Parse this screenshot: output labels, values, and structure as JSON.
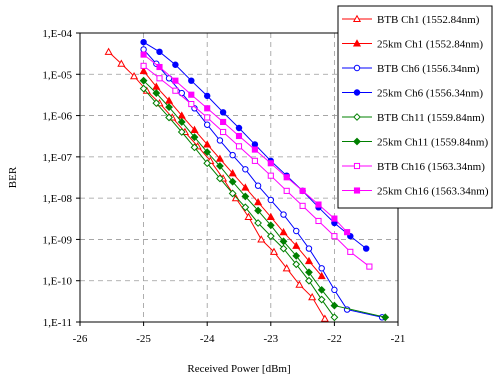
{
  "chart_data": {
    "type": "line",
    "xlabel": "Received Power [dBm]",
    "ylabel": "BER",
    "xlim": [
      -26,
      -21
    ],
    "ylim_log10": [
      -11,
      -4
    ],
    "y_scale": "log",
    "grid": true,
    "legend_position": "top-right-outside",
    "x_ticks": [
      -26,
      -25,
      -24,
      -23,
      -22,
      -21
    ],
    "x_tick_labels": [
      "-26",
      "-25",
      "-24",
      "-23",
      "-22",
      "-21"
    ],
    "y_ticks_log10": [
      -4,
      -5,
      -6,
      -7,
      -8,
      -9,
      -10,
      -11
    ],
    "y_tick_labels": [
      "1,E-04",
      "1,E-05",
      "1,E-06",
      "1,E-07",
      "1,E-08",
      "1,E-09",
      "1,E-10",
      "1,E-11"
    ],
    "series": [
      {
        "name": "BTB Ch1 (1552.84nm)",
        "color": "#ff0000",
        "marker": "triangle",
        "filled": false,
        "points": [
          [
            -25.55,
            3.5e-05
          ],
          [
            -25.35,
            1.8e-05
          ],
          [
            -25.15,
            9e-06
          ],
          [
            -24.95,
            4e-06
          ],
          [
            -24.75,
            2e-06
          ],
          [
            -24.55,
            9e-07
          ],
          [
            -24.35,
            4e-07
          ],
          [
            -24.15,
            1.8e-07
          ],
          [
            -23.95,
            8e-08
          ],
          [
            -23.75,
            3e-08
          ],
          [
            -23.55,
            1e-08
          ],
          [
            -23.35,
            3.5e-09
          ],
          [
            -23.15,
            1e-09
          ],
          [
            -22.95,
            5e-10
          ],
          [
            -22.75,
            2e-10
          ],
          [
            -22.55,
            8e-11
          ],
          [
            -22.35,
            4e-11
          ],
          [
            -22.15,
            1.2e-11
          ]
        ]
      },
      {
        "name": "25km Ch1 (1552.84nm)",
        "color": "#ff0000",
        "marker": "triangle",
        "filled": true,
        "points": [
          [
            -25.0,
            1.2e-05
          ],
          [
            -24.8,
            5e-06
          ],
          [
            -24.6,
            2.3e-06
          ],
          [
            -24.4,
            1e-06
          ],
          [
            -24.2,
            4.5e-07
          ],
          [
            -24.0,
            2e-07
          ],
          [
            -23.8,
            9e-08
          ],
          [
            -23.6,
            4e-08
          ],
          [
            -23.4,
            1.8e-08
          ],
          [
            -23.2,
            8e-09
          ],
          [
            -23.0,
            3.5e-09
          ],
          [
            -22.8,
            1.5e-09
          ],
          [
            -22.6,
            7e-10
          ],
          [
            -22.4,
            3e-10
          ],
          [
            -22.2,
            1.3e-10
          ]
        ]
      },
      {
        "name": "BTB Ch6 (1556.34nm)",
        "color": "#0000ff",
        "marker": "circle",
        "filled": false,
        "points": [
          [
            -25.0,
            4e-05
          ],
          [
            -24.8,
            1.8e-05
          ],
          [
            -24.6,
            8e-06
          ],
          [
            -24.4,
            3.5e-06
          ],
          [
            -24.2,
            1.5e-06
          ],
          [
            -24.0,
            6e-07
          ],
          [
            -23.8,
            2.5e-07
          ],
          [
            -23.6,
            1.1e-07
          ],
          [
            -23.4,
            5e-08
          ],
          [
            -23.2,
            2e-08
          ],
          [
            -23.0,
            9e-09
          ],
          [
            -22.8,
            4e-09
          ],
          [
            -22.6,
            1.6e-09
          ],
          [
            -22.4,
            6e-10
          ],
          [
            -22.2,
            2e-10
          ],
          [
            -22.0,
            6e-11
          ],
          [
            -21.8,
            2e-11
          ],
          [
            -21.25,
            1.3e-11
          ]
        ]
      },
      {
        "name": "25km Ch6 (1556.34nm)",
        "color": "#0000ff",
        "marker": "circle",
        "filled": true,
        "points": [
          [
            -25.0,
            6e-05
          ],
          [
            -24.75,
            3.5e-05
          ],
          [
            -24.5,
            1.7e-05
          ],
          [
            -24.25,
            7e-06
          ],
          [
            -24.0,
            3e-06
          ],
          [
            -23.75,
            1.2e-06
          ],
          [
            -23.5,
            5e-07
          ],
          [
            -23.25,
            2e-07
          ],
          [
            -23.0,
            8e-08
          ],
          [
            -22.75,
            3.5e-08
          ],
          [
            -22.5,
            1.5e-08
          ],
          [
            -22.25,
            6e-09
          ],
          [
            -22.0,
            2.5e-09
          ],
          [
            -21.75,
            1.2e-09
          ],
          [
            -21.5,
            6e-10
          ]
        ]
      },
      {
        "name": "BTB Ch11 (1559.84nm)",
        "color": "#008000",
        "marker": "diamond",
        "filled": false,
        "points": [
          [
            -25.0,
            4.5e-06
          ],
          [
            -24.8,
            2e-06
          ],
          [
            -24.6,
            9e-07
          ],
          [
            -24.4,
            4e-07
          ],
          [
            -24.2,
            1.7e-07
          ],
          [
            -24.0,
            7e-08
          ],
          [
            -23.8,
            3e-08
          ],
          [
            -23.6,
            1.3e-08
          ],
          [
            -23.4,
            6e-09
          ],
          [
            -23.2,
            2.5e-09
          ],
          [
            -23.0,
            1.2e-09
          ],
          [
            -22.8,
            6e-10
          ],
          [
            -22.6,
            2.5e-10
          ],
          [
            -22.4,
            1e-10
          ],
          [
            -22.2,
            3.5e-11
          ],
          [
            -22.0,
            1.3e-11
          ]
        ]
      },
      {
        "name": "25km Ch11 (1559.84nm)",
        "color": "#008000",
        "marker": "diamond",
        "filled": true,
        "points": [
          [
            -25.0,
            7e-06
          ],
          [
            -24.8,
            3.5e-06
          ],
          [
            -24.6,
            1.6e-06
          ],
          [
            -24.4,
            7e-07
          ],
          [
            -24.2,
            3e-07
          ],
          [
            -24.0,
            1.3e-07
          ],
          [
            -23.8,
            6e-08
          ],
          [
            -23.6,
            2.5e-08
          ],
          [
            -23.4,
            1.1e-08
          ],
          [
            -23.2,
            5e-09
          ],
          [
            -23.0,
            2.2e-09
          ],
          [
            -22.8,
            9e-10
          ],
          [
            -22.6,
            4e-10
          ],
          [
            -22.4,
            1.6e-10
          ],
          [
            -22.2,
            6e-11
          ],
          [
            -22.0,
            2.5e-11
          ],
          [
            -21.2,
            1.3e-11
          ]
        ]
      },
      {
        "name": "BTB Ch16 (1563.34nm)",
        "color": "#ff00ff",
        "marker": "square",
        "filled": false,
        "points": [
          [
            -25.0,
            1.6e-05
          ],
          [
            -24.75,
            8e-06
          ],
          [
            -24.5,
            4e-06
          ],
          [
            -24.25,
            1.9e-06
          ],
          [
            -24.0,
            9e-07
          ],
          [
            -23.75,
            4e-07
          ],
          [
            -23.5,
            1.8e-07
          ],
          [
            -23.25,
            8e-08
          ],
          [
            -23.0,
            3.5e-08
          ],
          [
            -22.75,
            1.5e-08
          ],
          [
            -22.5,
            6.5e-09
          ],
          [
            -22.25,
            2.8e-09
          ],
          [
            -22.0,
            1.2e-09
          ],
          [
            -21.75,
            5e-10
          ],
          [
            -21.45,
            2.2e-10
          ]
        ]
      },
      {
        "name": "25km Ch16 (1563.34nm)",
        "color": "#ff00ff",
        "marker": "square",
        "filled": true,
        "points": [
          [
            -25.0,
            3e-05
          ],
          [
            -24.75,
            1.5e-05
          ],
          [
            -24.5,
            7e-06
          ],
          [
            -24.25,
            3.2e-06
          ],
          [
            -24.0,
            1.5e-06
          ],
          [
            -23.75,
            7e-07
          ],
          [
            -23.5,
            3.2e-07
          ],
          [
            -23.25,
            1.5e-07
          ],
          [
            -23.0,
            7e-08
          ],
          [
            -22.75,
            3.2e-08
          ],
          [
            -22.5,
            1.5e-08
          ],
          [
            -22.25,
            7e-09
          ],
          [
            -22.0,
            3.2e-09
          ],
          [
            -21.8,
            1.5e-09
          ]
        ]
      }
    ]
  }
}
